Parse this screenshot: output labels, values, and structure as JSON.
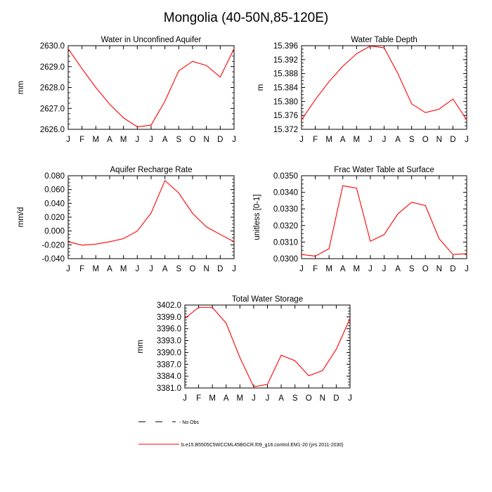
{
  "figure": {
    "title": "Mongolia (40-50N,85-120E)"
  },
  "legend": {
    "obs_label": "- No Obs",
    "model_label": "b.e15.B5505C5WCCML45BGCR.f09_g16.control.EM1-20 (yrs 2011-2030)",
    "obs_color": "#000000",
    "model_color": "#ff0000"
  },
  "chart_data": [
    {
      "type": "line",
      "title": "Water in Unconfined Aquifer",
      "ylabel": "mm",
      "xlabel": "",
      "categories": [
        "J",
        "F",
        "M",
        "A",
        "M",
        "J",
        "J",
        "A",
        "S",
        "O",
        "N",
        "D",
        "J"
      ],
      "ylim": [
        2626.0,
        2630.0
      ],
      "yticks": [
        "2626.0",
        "2627.0",
        "2628.0",
        "2629.0",
        "2630.0"
      ],
      "series": [
        {
          "color": "#ff0000",
          "values": [
            2629.85,
            2628.9,
            2628.0,
            2627.2,
            2626.55,
            2626.12,
            2626.2,
            2627.35,
            2628.8,
            2629.25,
            2629.05,
            2628.5,
            2629.85
          ]
        }
      ]
    },
    {
      "type": "line",
      "title": "Water Table Depth",
      "ylabel": "m",
      "xlabel": "",
      "categories": [
        "J",
        "F",
        "M",
        "A",
        "M",
        "J",
        "J",
        "A",
        "S",
        "O",
        "N",
        "D",
        "J"
      ],
      "ylim": [
        15.372,
        15.396
      ],
      "yticks": [
        "15.372",
        "15.376",
        "15.380",
        "15.384",
        "15.388",
        "15.392",
        "15.396"
      ],
      "series": [
        {
          "color": "#ff0000",
          "values": [
            15.3747,
            15.3805,
            15.3857,
            15.3901,
            15.3937,
            15.3959,
            15.3954,
            15.388,
            15.3793,
            15.3768,
            15.3778,
            15.3807,
            15.3747
          ]
        }
      ]
    },
    {
      "type": "line",
      "title": "Aquifer Recharge Rate",
      "ylabel": "mm/d",
      "xlabel": "",
      "categories": [
        "J",
        "F",
        "M",
        "A",
        "M",
        "J",
        "J",
        "A",
        "S",
        "O",
        "N",
        "D",
        "J"
      ],
      "ylim": [
        -0.04,
        0.08
      ],
      "yticks": [
        "-0.040",
        "-0.020",
        "0.000",
        "0.020",
        "0.040",
        "0.060",
        "0.080"
      ],
      "series": [
        {
          "color": "#ff0000",
          "values": [
            -0.0155,
            -0.0205,
            -0.019,
            -0.0155,
            -0.011,
            0.0,
            0.026,
            0.073,
            0.055,
            0.0255,
            0.006,
            -0.005,
            -0.0155
          ]
        }
      ]
    },
    {
      "type": "line",
      "title": "Frac Water Table at Surface",
      "ylabel": "unitless [0-1]",
      "xlabel": "",
      "categories": [
        "J",
        "F",
        "M",
        "A",
        "M",
        "J",
        "J",
        "A",
        "S",
        "O",
        "N",
        "D",
        "J"
      ],
      "ylim": [
        0.03,
        0.035
      ],
      "yticks": [
        "0.0300",
        "0.0310",
        "0.0320",
        "0.0330",
        "0.0340",
        "0.0350"
      ],
      "series": [
        {
          "color": "#ff0000",
          "values": [
            0.03025,
            0.03015,
            0.0306,
            0.0344,
            0.03425,
            0.03105,
            0.03145,
            0.0327,
            0.0334,
            0.0332,
            0.0312,
            0.03025,
            0.0303
          ]
        }
      ]
    },
    {
      "type": "line",
      "title": "Total Water Storage",
      "ylabel": "mm",
      "xlabel": "",
      "categories": [
        "J",
        "F",
        "M",
        "A",
        "M",
        "J",
        "J",
        "A",
        "S",
        "O",
        "N",
        "D",
        "J"
      ],
      "ylim": [
        3381.0,
        3402.0
      ],
      "yticks": [
        "3381.0",
        "3384.0",
        "3387.0",
        "3390.0",
        "3393.0",
        "3396.0",
        "3399.0",
        "3402.0"
      ],
      "series": [
        {
          "color": "#ff0000",
          "values": [
            3398.6,
            3401.4,
            3401.4,
            3397.4,
            3388.7,
            3381.3,
            3381.9,
            3389.3,
            3387.9,
            3384.1,
            3385.4,
            3390.8,
            3398.6
          ]
        }
      ]
    }
  ]
}
